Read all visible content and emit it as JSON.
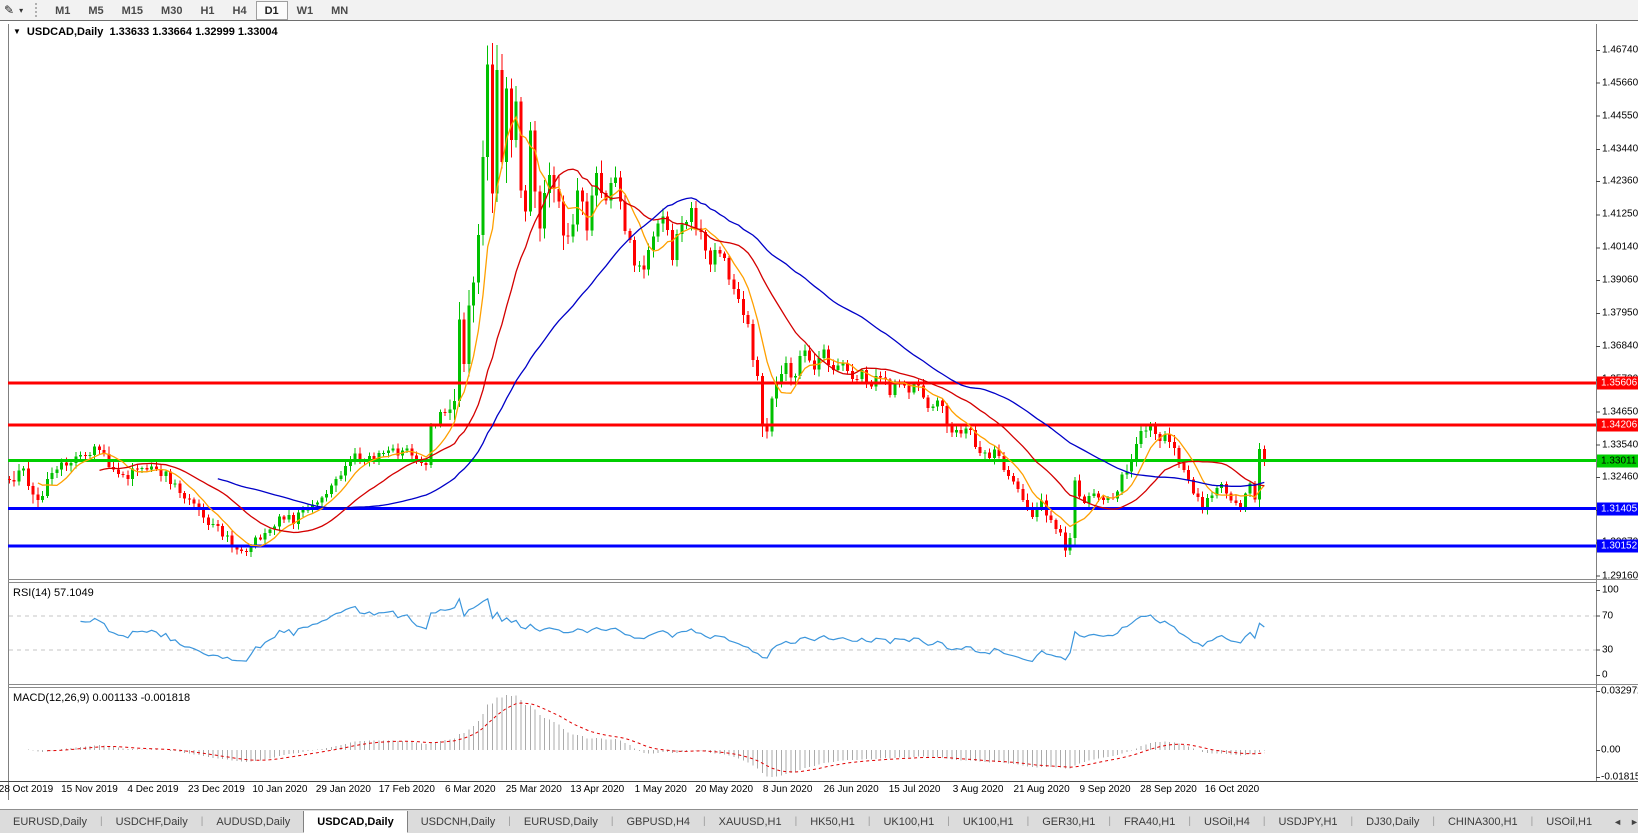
{
  "toolbar": {
    "cursor_tool": "crosshair-draw-tool",
    "timeframes": [
      "M1",
      "M5",
      "M15",
      "M30",
      "H1",
      "H4",
      "D1",
      "W1",
      "MN"
    ],
    "selected_timeframe": "D1"
  },
  "chart": {
    "symbol": "USDCAD,Daily",
    "ohlc_text": "1.33633 1.33664 1.32999 1.33004",
    "price_axis": [
      "1.46740",
      "1.45660",
      "1.44550",
      "1.43440",
      "1.42360",
      "1.41250",
      "1.40140",
      "1.39060",
      "1.37950",
      "1.36840",
      "1.35730",
      "1.34650",
      "1.33540",
      "1.32460",
      "1.31350",
      "1.30270",
      "1.29160"
    ],
    "hlines": [
      {
        "price": 1.35606,
        "label": "1.35606",
        "color": "#FF0000",
        "text_color": "#FFFFFF"
      },
      {
        "price": 1.34206,
        "label": "1.34206",
        "color": "#FF0000",
        "text_color": "#FFFFFF"
      },
      {
        "price": 1.33011,
        "label": "1.33011",
        "color": "#00CE00",
        "text_color": "#000000"
      },
      {
        "price": 1.31405,
        "label": "1.31405",
        "color": "#0000FF",
        "text_color": "#FFFFFF"
      },
      {
        "price": 1.30152,
        "label": "1.30152",
        "color": "#0000FF",
        "text_color": "#FFFFFF"
      }
    ],
    "dates": [
      "28 Oct 2019",
      "15 Nov 2019",
      "4 Dec 2019",
      "23 Dec 2019",
      "10 Jan 2020",
      "29 Jan 2020",
      "17 Feb 2020",
      "6 Mar 2020",
      "25 Mar 2020",
      "13 Apr 2020",
      "1 May 2020",
      "20 May 2020",
      "8 Jun 2020",
      "26 Jun 2020",
      "15 Jul 2020",
      "3 Aug 2020",
      "21 Aug 2020",
      "9 Sep 2020",
      "28 Sep 2020",
      "16 Oct 2020"
    ]
  },
  "rsi": {
    "label": "RSI(14) 57.1049",
    "levels": [
      "100",
      "70",
      "30",
      "0"
    ],
    "line_color": "#3C96DC"
  },
  "macd": {
    "label": "MACD(12,26,9) 0.001133 -0.001818",
    "axis": [
      "0.032972",
      "0.00",
      "-0.018154"
    ],
    "hist_color": "#ABABAB",
    "signal_color": "#E00000"
  },
  "tabs": {
    "items": [
      "EURUSD,Daily",
      "USDCHF,Daily",
      "AUDUSD,Daily",
      "USDCAD,Daily",
      "USDCNH,Daily",
      "EURUSD,Daily",
      "GBPUSD,H4",
      "XAUUSD,H1",
      "HK50,H1",
      "UK100,H1",
      "UK100,H1",
      "GER30,H1",
      "FRA40,H1",
      "USOil,H4",
      "USDJPY,H1",
      "DJ30,Daily",
      "CHINA300,H1",
      "USOil,H1"
    ],
    "active_index": 3,
    "scroll_left": "◄",
    "scroll_right": "►"
  },
  "chart_data": {
    "type": "candlestick",
    "symbol": "USDCAD",
    "timeframe": "Daily",
    "bars": 266,
    "price_min": 1.2916,
    "price_max": 1.4674,
    "bull_color": "#00C000",
    "bear_color": "#FF0000",
    "spike_high": 1.469,
    "moving_averages": [
      {
        "period": 7,
        "color": "#FFA000"
      },
      {
        "period": 20,
        "color": "#D40000"
      },
      {
        "period": 45,
        "color": "#0000C8"
      }
    ],
    "indicators": {
      "rsi_period": 14,
      "macd_params": [
        12,
        26,
        9
      ]
    },
    "waypoints": [
      [
        0,
        1.3225,
        0.005
      ],
      [
        2,
        1.3275,
        0.005
      ],
      [
        4,
        1.323,
        0.005
      ],
      [
        6,
        1.3155,
        0.005
      ],
      [
        8,
        1.324,
        0.004
      ],
      [
        11,
        1.329,
        0.004
      ],
      [
        14,
        1.332,
        0.004
      ],
      [
        17,
        1.3335,
        0.004
      ],
      [
        19,
        1.334,
        0.004
      ],
      [
        22,
        1.327,
        0.004
      ],
      [
        24,
        1.3245,
        0.004
      ],
      [
        28,
        1.329,
        0.004
      ],
      [
        31,
        1.327,
        0.004
      ],
      [
        34,
        1.324,
        0.004
      ],
      [
        37,
        1.3185,
        0.004
      ],
      [
        40,
        1.3155,
        0.004
      ],
      [
        42,
        1.3085,
        0.004
      ],
      [
        45,
        1.306,
        0.003
      ],
      [
        47,
        1.302,
        0.003
      ],
      [
        50,
        1.299,
        0.003
      ],
      [
        53,
        1.305,
        0.003
      ],
      [
        55,
        1.308,
        0.003
      ],
      [
        58,
        1.3115,
        0.003
      ],
      [
        60,
        1.31,
        0.003
      ],
      [
        64,
        1.3155,
        0.003
      ],
      [
        67,
        1.3185,
        0.003
      ],
      [
        70,
        1.3255,
        0.004
      ],
      [
        72,
        1.3315,
        0.004
      ],
      [
        75,
        1.33,
        0.003
      ],
      [
        78,
        1.332,
        0.003
      ],
      [
        81,
        1.333,
        0.003
      ],
      [
        84,
        1.3335,
        0.003
      ],
      [
        86,
        1.331,
        0.003
      ],
      [
        88,
        1.328,
        0.004
      ],
      [
        89,
        1.3395,
        0.005
      ],
      [
        91,
        1.3445,
        0.005
      ],
      [
        93,
        1.3465,
        0.006
      ],
      [
        94,
        1.352,
        0.008
      ],
      [
        95,
        1.375,
        0.01
      ],
      [
        96,
        1.359,
        0.01
      ],
      [
        97,
        1.378,
        0.01
      ],
      [
        98,
        1.392,
        0.01
      ],
      [
        99,
        1.401,
        0.011
      ],
      [
        100,
        1.433,
        0.012
      ],
      [
        101,
        1.458,
        0.013
      ],
      [
        102,
        1.423,
        0.016
      ],
      [
        103,
        1.4545,
        0.014
      ],
      [
        104,
        1.43,
        0.013
      ],
      [
        105,
        1.456,
        0.012
      ],
      [
        106,
        1.437,
        0.012
      ],
      [
        107,
        1.448,
        0.011
      ],
      [
        108,
        1.418,
        0.011
      ],
      [
        109,
        1.409,
        0.01
      ],
      [
        110,
        1.437,
        0.01
      ],
      [
        112,
        1.408,
        0.009
      ],
      [
        114,
        1.428,
        0.009
      ],
      [
        116,
        1.414,
        0.008
      ],
      [
        118,
        1.402,
        0.008
      ],
      [
        120,
        1.419,
        0.008
      ],
      [
        122,
        1.41,
        0.007
      ],
      [
        124,
        1.425,
        0.007
      ],
      [
        126,
        1.416,
        0.007
      ],
      [
        128,
        1.427,
        0.007
      ],
      [
        130,
        1.409,
        0.006
      ],
      [
        132,
        1.398,
        0.006
      ],
      [
        134,
        1.392,
        0.006
      ],
      [
        136,
        1.406,
        0.006
      ],
      [
        138,
        1.412,
        0.005
      ],
      [
        140,
        1.399,
        0.005
      ],
      [
        142,
        1.409,
        0.005
      ],
      [
        144,
        1.414,
        0.005
      ],
      [
        146,
        1.405,
        0.005
      ],
      [
        148,
        1.397,
        0.005
      ],
      [
        150,
        1.401,
        0.005
      ],
      [
        152,
        1.391,
        0.005
      ],
      [
        154,
        1.383,
        0.005
      ],
      [
        156,
        1.375,
        0.005
      ],
      [
        158,
        1.356,
        0.006
      ],
      [
        159,
        1.343,
        0.006
      ],
      [
        160,
        1.339,
        0.005
      ],
      [
        161,
        1.349,
        0.005
      ],
      [
        162,
        1.356,
        0.005
      ],
      [
        164,
        1.362,
        0.005
      ],
      [
        166,
        1.358,
        0.005
      ],
      [
        168,
        1.368,
        0.005
      ],
      [
        170,
        1.362,
        0.004
      ],
      [
        172,
        1.367,
        0.004
      ],
      [
        174,
        1.36,
        0.004
      ],
      [
        176,
        1.364,
        0.004
      ],
      [
        178,
        1.357,
        0.004
      ],
      [
        180,
        1.361,
        0.004
      ],
      [
        182,
        1.355,
        0.004
      ],
      [
        184,
        1.359,
        0.004
      ],
      [
        186,
        1.353,
        0.004
      ],
      [
        188,
        1.357,
        0.004
      ],
      [
        190,
        1.352,
        0.004
      ],
      [
        192,
        1.356,
        0.004
      ],
      [
        194,
        1.348,
        0.004
      ],
      [
        196,
        1.352,
        0.004
      ],
      [
        198,
        1.343,
        0.004
      ],
      [
        200,
        1.339,
        0.004
      ],
      [
        202,
        1.342,
        0.004
      ],
      [
        204,
        1.336,
        0.004
      ],
      [
        206,
        1.331,
        0.004
      ],
      [
        208,
        1.334,
        0.004
      ],
      [
        210,
        1.327,
        0.004
      ],
      [
        212,
        1.323,
        0.004
      ],
      [
        214,
        1.318,
        0.004
      ],
      [
        216,
        1.312,
        0.004
      ],
      [
        218,
        1.316,
        0.004
      ],
      [
        220,
        1.309,
        0.004
      ],
      [
        222,
        1.3055,
        0.003
      ],
      [
        223,
        1.3,
        0.004
      ],
      [
        224,
        1.3045,
        0.004
      ],
      [
        225,
        1.322,
        0.004
      ],
      [
        227,
        1.3165,
        0.003
      ],
      [
        229,
        1.3195,
        0.003
      ],
      [
        231,
        1.3155,
        0.003
      ],
      [
        233,
        1.3185,
        0.003
      ],
      [
        235,
        1.324,
        0.004
      ],
      [
        237,
        1.332,
        0.004
      ],
      [
        239,
        1.339,
        0.004
      ],
      [
        241,
        1.342,
        0.004
      ],
      [
        243,
        1.3355,
        0.004
      ],
      [
        244,
        1.3405,
        0.004
      ],
      [
        246,
        1.333,
        0.004
      ],
      [
        248,
        1.328,
        0.003
      ],
      [
        250,
        1.32,
        0.003
      ],
      [
        252,
        1.315,
        0.003
      ],
      [
        254,
        1.319,
        0.003
      ],
      [
        256,
        1.3235,
        0.003
      ],
      [
        258,
        1.316,
        0.003
      ],
      [
        260,
        1.314,
        0.003
      ],
      [
        261,
        1.318,
        0.003
      ],
      [
        262,
        1.322,
        0.003
      ],
      [
        263,
        1.317,
        0.003
      ],
      [
        264,
        1.334,
        0.006
      ],
      [
        265,
        1.33,
        0.004
      ]
    ]
  }
}
